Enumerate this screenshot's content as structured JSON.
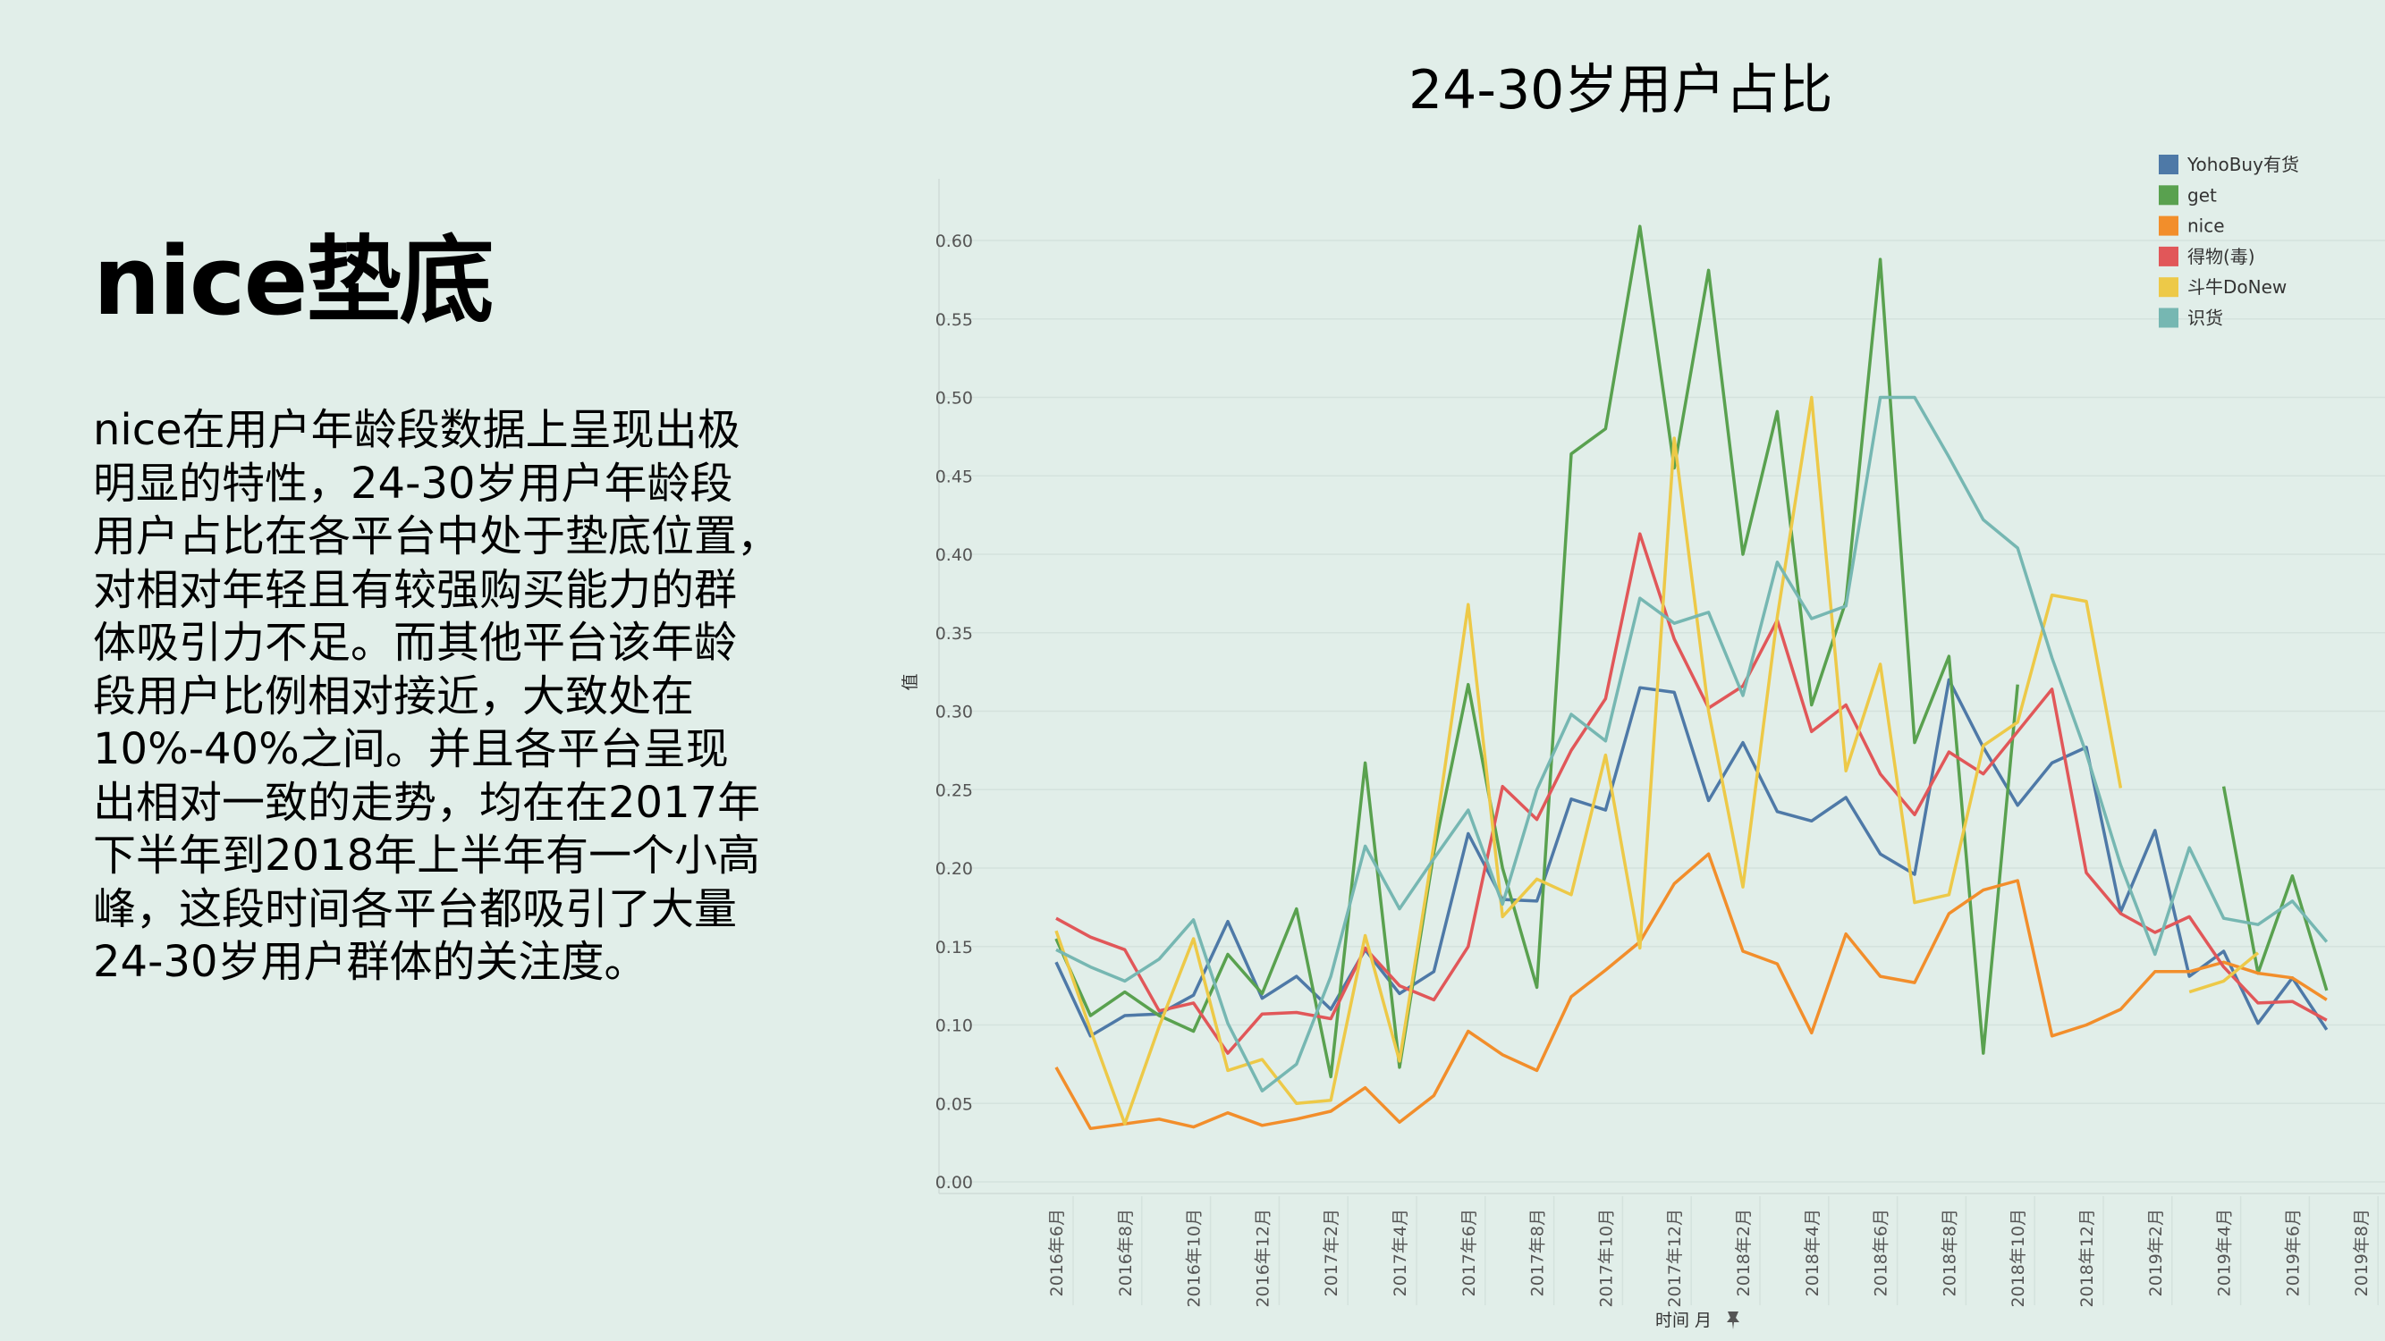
{
  "slide": {
    "title": "nice垫底",
    "body_lines": [
      "nice在用户年龄段数据上呈现出极",
      "明显的特性，24-30岁用户年龄段",
      "用户占比在各平台中处于垫底位置，",
      "对相对年轻且有较强购买能力的群",
      "体吸引力不足。而其他平台该年龄",
      "段用户比例相对接近，大致处在",
      "10%-40%之间。并且各平台呈现",
      "出相对一致的走势，均在在2017年",
      "下半年到2018年上半年有一个小高",
      "峰，这段时间各平台都吸引了大量",
      "24-30岁用户群体的关注度。"
    ]
  },
  "chart_data": {
    "type": "line",
    "title": "24-30岁用户占比",
    "xlabel": "时间 月",
    "ylabel": "值",
    "ylim": [
      0,
      0.62
    ],
    "yticks": [
      "0.00",
      "0.05",
      "0.10",
      "0.15",
      "0.20",
      "0.25",
      "0.30",
      "0.35",
      "0.40",
      "0.45",
      "0.50",
      "0.55",
      "0.60"
    ],
    "x": [
      "2016-06",
      "2016-07",
      "2016-08",
      "2016-09",
      "2016-10",
      "2016-11",
      "2016-12",
      "2017-01",
      "2017-02",
      "2017-03",
      "2017-04",
      "2017-05",
      "2017-06",
      "2017-07",
      "2017-08",
      "2017-09",
      "2017-10",
      "2017-11",
      "2017-12",
      "2018-01",
      "2018-02",
      "2018-03",
      "2018-04",
      "2018-05",
      "2018-06",
      "2018-07",
      "2018-08",
      "2018-09",
      "2018-10",
      "2018-11",
      "2018-12",
      "2019-01",
      "2019-02",
      "2019-03",
      "2019-04",
      "2019-05",
      "2019-06",
      "2019-07"
    ],
    "xtick_labels": [
      "2016年6月",
      "2016年8月",
      "2016年10月",
      "2016年12月",
      "2017年2月",
      "2017年4月",
      "2017年6月",
      "2017年8月",
      "2017年10月",
      "2017年12月",
      "2018年2月",
      "2018年4月",
      "2018年6月",
      "2018年8月",
      "2018年10月",
      "2018年12月",
      "2019年2月",
      "2019年4月",
      "2019年6月",
      "2019年8月"
    ],
    "legend_position": "top-right",
    "grid": true,
    "series": [
      {
        "name": "YohoBuy有货",
        "color": "#4e79a7",
        "values": [
          0.14,
          0.093,
          0.106,
          0.107,
          0.119,
          0.166,
          0.117,
          0.131,
          0.11,
          0.148,
          0.12,
          0.134,
          0.222,
          0.18,
          0.179,
          0.244,
          0.237,
          0.315,
          0.312,
          0.243,
          0.28,
          0.236,
          0.23,
          0.245,
          0.209,
          0.196,
          0.32,
          0.277,
          0.24,
          0.267,
          0.277,
          0.172,
          0.224,
          0.131,
          0.147,
          0.101,
          0.13,
          0.097
        ]
      },
      {
        "name": "get",
        "color": "#59a14f",
        "values": [
          0.155,
          0.106,
          0.121,
          0.106,
          0.096,
          0.145,
          0.12,
          0.174,
          0.067,
          0.267,
          0.073,
          0.21,
          0.317,
          0.2,
          0.124,
          0.464,
          0.48,
          0.609,
          0.455,
          0.581,
          0.4,
          0.491,
          0.304,
          0.37,
          0.588,
          0.28,
          0.335,
          0.082,
          0.317,
          null,
          null,
          null,
          null,
          null,
          0.252,
          0.133,
          0.195,
          0.122
        ]
      },
      {
        "name": "nice",
        "color": "#f28e2b",
        "values": [
          0.073,
          0.034,
          0.037,
          0.04,
          0.035,
          0.044,
          0.036,
          0.04,
          0.045,
          0.06,
          0.038,
          0.055,
          0.096,
          0.081,
          0.071,
          0.118,
          0.135,
          0.153,
          0.19,
          0.209,
          0.147,
          0.139,
          0.095,
          0.158,
          0.131,
          0.127,
          0.171,
          0.186,
          0.192,
          0.093,
          0.1,
          0.11,
          0.134,
          0.134,
          0.14,
          0.133,
          0.13,
          0.116
        ]
      },
      {
        "name": "得物(毒)",
        "color": "#e15759",
        "values": [
          0.168,
          0.156,
          0.148,
          0.109,
          0.114,
          0.082,
          0.107,
          0.108,
          0.104,
          0.149,
          0.125,
          0.116,
          0.15,
          0.252,
          0.231,
          0.275,
          0.308,
          0.413,
          0.346,
          0.302,
          0.316,
          0.358,
          0.287,
          0.304,
          0.26,
          0.234,
          0.274,
          0.26,
          0.287,
          0.314,
          0.197,
          0.171,
          0.159,
          0.169,
          0.137,
          0.114,
          0.115,
          0.103
        ]
      },
      {
        "name": "斗牛DoNew",
        "color": "#edc948",
        "values": [
          0.16,
          0.097,
          0.037,
          0.099,
          0.155,
          0.071,
          0.078,
          0.05,
          0.052,
          0.157,
          0.077,
          0.215,
          0.368,
          0.169,
          0.193,
          0.183,
          0.272,
          0.149,
          0.474,
          0.3,
          0.188,
          0.36,
          0.5,
          0.262,
          0.33,
          0.178,
          0.183,
          0.278,
          0.293,
          0.374,
          0.37,
          0.251,
          null,
          0.121,
          0.128,
          0.146,
          null,
          null
        ]
      },
      {
        "name": "识货",
        "color": "#76b7b2",
        "values": [
          0.148,
          0.137,
          0.128,
          0.142,
          0.167,
          0.101,
          0.058,
          0.075,
          0.131,
          0.214,
          0.174,
          0.206,
          0.237,
          0.177,
          0.25,
          0.298,
          0.281,
          0.372,
          0.356,
          0.363,
          0.31,
          0.395,
          0.359,
          0.367,
          0.5,
          0.5,
          0.462,
          0.422,
          0.404,
          0.334,
          0.273,
          0.202,
          0.145,
          0.213,
          0.168,
          0.164,
          0.179,
          0.153
        ]
      }
    ]
  }
}
